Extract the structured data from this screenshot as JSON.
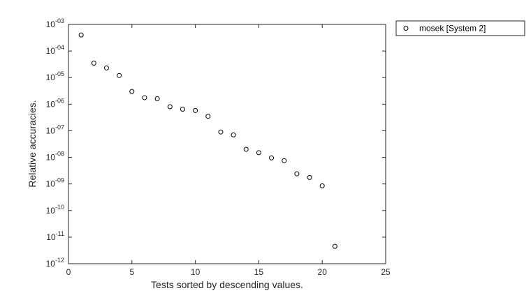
{
  "chart_data": {
    "type": "scatter",
    "title": "",
    "xlabel": "Tests sorted by descending values.",
    "ylabel": "Relative accuracies.",
    "xlim": [
      0,
      25
    ],
    "ylim": [
      1e-12,
      0.001
    ],
    "y_scale": "log",
    "grid": false,
    "x_ticks": [
      "0",
      "5",
      "10",
      "15",
      "20",
      "25"
    ],
    "y_ticks": [
      {
        "base": "10",
        "exp": "-12"
      },
      {
        "base": "10",
        "exp": "-11"
      },
      {
        "base": "10",
        "exp": "-10"
      },
      {
        "base": "10",
        "exp": "-09"
      },
      {
        "base": "10",
        "exp": "-08"
      },
      {
        "base": "10",
        "exp": "-07"
      },
      {
        "base": "10",
        "exp": "-06"
      },
      {
        "base": "10",
        "exp": "-05"
      },
      {
        "base": "10",
        "exp": "-04"
      },
      {
        "base": "10",
        "exp": "-03"
      }
    ],
    "legend": {
      "placement": "outside-top-right",
      "entries": [
        "mosek [System 2]"
      ]
    },
    "series": [
      {
        "name": "mosek [System 2]",
        "marker": "open-circle",
        "color": "#000000",
        "x": [
          1,
          2,
          3,
          4,
          5,
          6,
          7,
          8,
          9,
          10,
          11,
          12,
          13,
          14,
          15,
          16,
          17,
          18,
          19,
          20,
          21
        ],
        "y": [
          0.0004,
          3.5e-05,
          2.3e-05,
          1.2e-05,
          3e-06,
          1.75e-06,
          1.6e-06,
          8e-07,
          6.5e-07,
          5.8e-07,
          3.5e-07,
          9e-08,
          7e-08,
          2e-08,
          1.5e-08,
          9.5e-09,
          7.5e-09,
          2.4e-09,
          1.75e-09,
          8.5e-10,
          4.5e-12
        ]
      }
    ]
  }
}
